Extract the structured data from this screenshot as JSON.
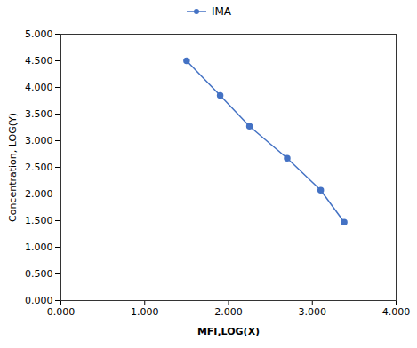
{
  "chart_data": {
    "type": "line",
    "x": [
      1.5,
      1.9,
      2.25,
      2.7,
      3.1,
      3.38
    ],
    "series": [
      {
        "name": "IMA",
        "color": "#4472C4",
        "marker": "circle",
        "values": [
          4.5,
          3.85,
          3.27,
          2.67,
          2.07,
          1.47
        ]
      }
    ],
    "xlabel": "MFI,LOG(X)",
    "ylabel": "Concentration, LOG(Y)",
    "xlim": [
      0.0,
      4.0
    ],
    "ylim": [
      0.0,
      5.0
    ],
    "xticks": [
      {
        "value": 0,
        "label": "0.000"
      },
      {
        "value": 1,
        "label": "1.000"
      },
      {
        "value": 2,
        "label": "2.000"
      },
      {
        "value": 3,
        "label": "3.000"
      },
      {
        "value": 4,
        "label": "4.000"
      }
    ],
    "yticks": [
      {
        "value": 0,
        "label": "0.000"
      },
      {
        "value": 0.5,
        "label": "0.500"
      },
      {
        "value": 1,
        "label": "1.000"
      },
      {
        "value": 1.5,
        "label": "1.500"
      },
      {
        "value": 2,
        "label": "2.000"
      },
      {
        "value": 2.5,
        "label": "2.500"
      },
      {
        "value": 3,
        "label": "3.000"
      },
      {
        "value": 3.5,
        "label": "3.500"
      },
      {
        "value": 4,
        "label": "4.000"
      },
      {
        "value": 4.5,
        "label": "4.500"
      },
      {
        "value": 5,
        "label": "5.000"
      }
    ],
    "legend": "top",
    "grid": false
  }
}
